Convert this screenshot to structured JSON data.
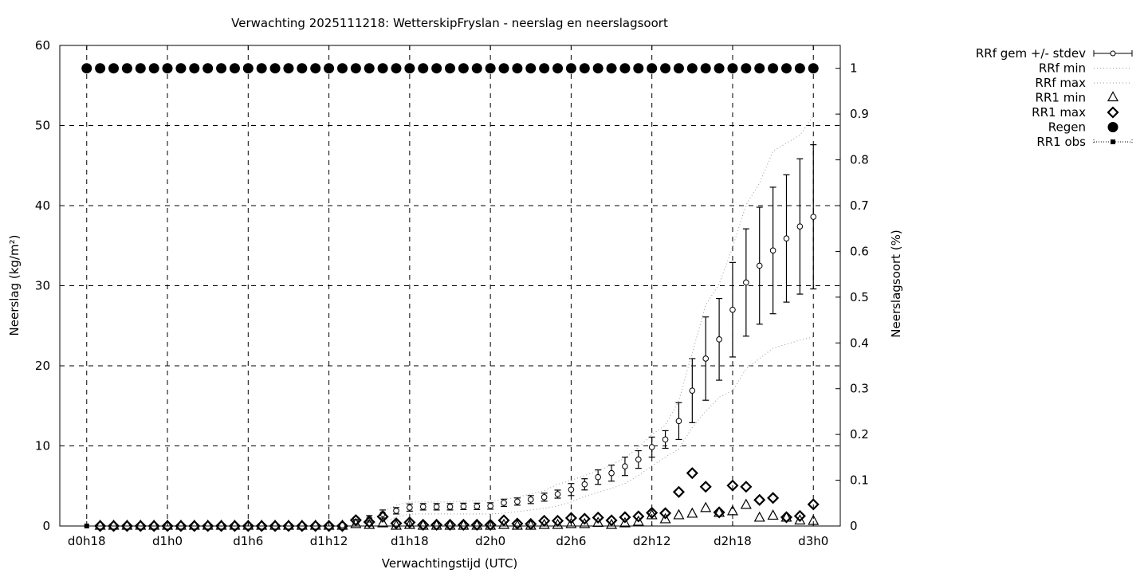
{
  "chart_data": {
    "type": "line",
    "title": "Verwachting 2025111218: WetterskipFryslan - neerslag en neerslagsoort",
    "xlabel": "Verwachtingstijd (UTC)",
    "ylabel": "Neerslag (kg/m²)",
    "y2label": "Neerslagsoort (%)",
    "xlim": [
      "d0h16",
      "d3h2"
    ],
    "ylim": [
      0,
      60
    ],
    "y2lim": [
      0,
      1.05
    ],
    "grid": true,
    "legend_position": "outside-right-top",
    "x_ticks": [
      "d0h18",
      "d1h0",
      "d1h6",
      "d1h12",
      "d1h18",
      "d2h0",
      "d2h6",
      "d2h12",
      "d2h18",
      "d3h0"
    ],
    "y_ticks": [
      0,
      10,
      20,
      30,
      40,
      50,
      60
    ],
    "y2_ticks": [
      0,
      0.1,
      0.2,
      0.3,
      0.4,
      0.5,
      0.6,
      0.7,
      0.8,
      0.9,
      1
    ],
    "x": [
      "d0h18",
      "d0h19",
      "d0h20",
      "d0h21",
      "d0h22",
      "d0h23",
      "d1h0",
      "d1h1",
      "d1h2",
      "d1h3",
      "d1h4",
      "d1h5",
      "d1h6",
      "d1h7",
      "d1h8",
      "d1h9",
      "d1h10",
      "d1h11",
      "d1h12",
      "d1h13",
      "d1h14",
      "d1h15",
      "d1h16",
      "d1h17",
      "d1h18",
      "d1h19",
      "d1h20",
      "d1h21",
      "d1h22",
      "d1h23",
      "d2h0",
      "d2h1",
      "d2h2",
      "d2h3",
      "d2h4",
      "d2h5",
      "d2h6",
      "d2h7",
      "d2h8",
      "d2h9",
      "d2h10",
      "d2h11",
      "d2h12",
      "d2h13",
      "d2h14",
      "d2h15",
      "d2h16",
      "d2h17",
      "d2h18",
      "d2h19",
      "d2h20",
      "d2h21",
      "d2h22",
      "d2h23",
      "d3h0"
    ],
    "series": [
      {
        "name": "RRf gem +/- stdev",
        "axis": "y",
        "style": "errorbars",
        "values": [
          null,
          null,
          null,
          null,
          null,
          null,
          null,
          null,
          null,
          null,
          null,
          null,
          null,
          null,
          null,
          null,
          null,
          null,
          null,
          0.1,
          0.5,
          0.9,
          1.5,
          1.9,
          2.3,
          2.4,
          2.4,
          2.4,
          2.45,
          2.45,
          2.5,
          2.9,
          3.05,
          3.3,
          3.6,
          3.98,
          4.55,
          5.2,
          6.1,
          6.6,
          7.45,
          8.3,
          9.85,
          10.8,
          13.1,
          16.9,
          20.9,
          23.3,
          27.0,
          30.4,
          32.5,
          34.4,
          35.9,
          37.4,
          38.6
        ],
        "stdev": [
          null,
          null,
          null,
          null,
          null,
          null,
          null,
          null,
          null,
          null,
          null,
          null,
          null,
          null,
          null,
          null,
          null,
          null,
          null,
          0.1,
          0.3,
          0.4,
          0.5,
          0.4,
          0.45,
          0.4,
          0.4,
          0.4,
          0.4,
          0.4,
          0.4,
          0.45,
          0.45,
          0.5,
          0.5,
          0.5,
          0.75,
          0.7,
          0.9,
          1.0,
          1.15,
          1.1,
          1.25,
          1.1,
          2.3,
          4.0,
          5.2,
          5.1,
          5.9,
          6.7,
          7.3,
          7.9,
          7.95,
          8.45,
          9.0
        ]
      },
      {
        "name": "RRf min",
        "axis": "y",
        "style": "dotted-line",
        "values": [
          null,
          null,
          null,
          null,
          null,
          null,
          null,
          null,
          null,
          null,
          null,
          null,
          null,
          null,
          null,
          null,
          null,
          null,
          null,
          null,
          null,
          0,
          0.5,
          1.1,
          1.5,
          1.5,
          1.5,
          1.5,
          1.5,
          1.5,
          1.5,
          1.6,
          1.8,
          2.0,
          2.2,
          2.5,
          3.0,
          3.7,
          4.2,
          4.7,
          5.3,
          6.3,
          7.5,
          8.6,
          9.6,
          12.3,
          14.3,
          16.1,
          16.9,
          19.6,
          20.9,
          22.2,
          22.7,
          23.2,
          23.6
        ]
      },
      {
        "name": "RRf max",
        "axis": "y",
        "style": "dotted-line",
        "values": [
          null,
          null,
          null,
          null,
          null,
          null,
          null,
          null,
          null,
          null,
          null,
          null,
          null,
          null,
          null,
          null,
          null,
          null,
          null,
          null,
          null,
          0.5,
          1.8,
          2.6,
          3.0,
          3.0,
          3.0,
          3.0,
          3.1,
          3.1,
          3.1,
          3.3,
          3.6,
          4.0,
          4.4,
          5.2,
          5.7,
          6.3,
          6.9,
          7.6,
          8.5,
          9.8,
          11.4,
          12.6,
          15.6,
          21.6,
          27.6,
          30.2,
          34.8,
          40.1,
          42.8,
          46.8,
          47.8,
          48.8,
          51.2
        ]
      },
      {
        "name": "RR1 min",
        "axis": "y",
        "style": "triangle",
        "values": [
          null,
          0,
          0,
          0,
          0,
          0,
          0,
          0,
          0,
          0,
          0,
          0,
          0,
          0,
          0,
          0,
          0,
          0,
          0,
          0,
          0.2,
          0.1,
          0.3,
          0,
          0.1,
          0,
          0,
          0,
          0,
          0,
          0,
          0.1,
          0,
          0,
          0.1,
          0.1,
          0.2,
          0.2,
          0.35,
          0.1,
          0.3,
          0.5,
          1.3,
          0.8,
          1.3,
          1.5,
          2.2,
          1.6,
          1.8,
          2.6,
          1.0,
          1.25,
          1.0,
          0.65,
          0.6
        ]
      },
      {
        "name": "RR1 max",
        "axis": "y",
        "style": "diamond",
        "values": [
          null,
          0,
          0,
          0,
          0,
          0,
          0,
          0,
          0,
          0,
          0,
          0,
          0,
          0,
          0,
          0,
          0,
          0,
          0,
          0,
          0.73,
          0.5,
          1.16,
          0.33,
          0.45,
          0.15,
          0.15,
          0.15,
          0.15,
          0.15,
          0.15,
          0.7,
          0.3,
          0.25,
          0.65,
          0.65,
          1.0,
          0.9,
          1.05,
          0.7,
          1.1,
          1.2,
          1.65,
          1.6,
          4.25,
          6.6,
          4.9,
          1.7,
          5.05,
          4.9,
          3.25,
          3.5,
          1.1,
          1.25,
          2.7
        ]
      },
      {
        "name": "Regen",
        "axis": "y2",
        "style": "filled-circle",
        "values": [
          1,
          1,
          1,
          1,
          1,
          1,
          1,
          1,
          1,
          1,
          1,
          1,
          1,
          1,
          1,
          1,
          1,
          1,
          1,
          1,
          1,
          1,
          1,
          1,
          1,
          1,
          1,
          1,
          1,
          1,
          1,
          1,
          1,
          1,
          1,
          1,
          1,
          1,
          1,
          1,
          1,
          1,
          1,
          1,
          1,
          1,
          1,
          1,
          1,
          1,
          1,
          1,
          1,
          1,
          1
        ]
      },
      {
        "name": "RR1 obs",
        "axis": "y",
        "style": "square-dotted-line",
        "values": [
          0,
          null,
          null,
          null,
          null,
          null,
          null,
          null,
          null,
          null,
          null,
          null,
          null,
          null,
          null,
          null,
          null,
          null,
          null,
          null,
          null,
          null,
          null,
          null,
          null,
          null,
          null,
          null,
          null,
          null,
          null,
          null,
          null,
          null,
          null,
          null,
          null,
          null,
          null,
          null,
          null,
          null,
          null,
          null,
          null,
          null,
          null,
          null,
          null,
          null,
          null,
          null,
          null,
          null,
          null
        ]
      }
    ]
  }
}
